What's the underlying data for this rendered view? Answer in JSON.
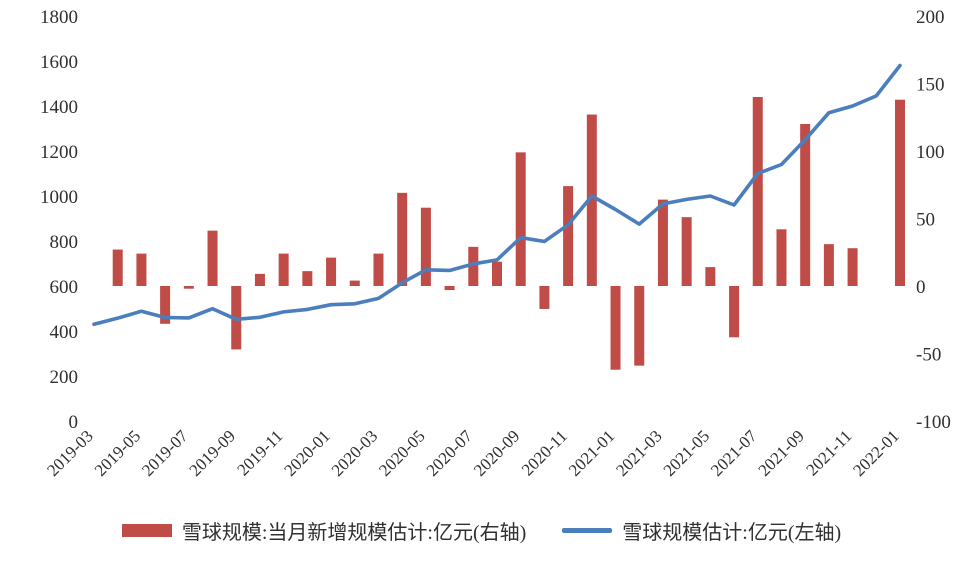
{
  "chart_data": {
    "type": "combo",
    "title": "",
    "x": [
      "2019-03",
      "2019-04",
      "2019-05",
      "2019-06",
      "2019-07",
      "2019-08",
      "2019-09",
      "2019-10",
      "2019-11",
      "2019-12",
      "2020-01",
      "2020-02",
      "2020-03",
      "2020-04",
      "2020-05",
      "2020-06",
      "2020-07",
      "2020-08",
      "2020-09",
      "2020-10",
      "2020-11",
      "2020-12",
      "2021-01",
      "2021-02",
      "2021-03",
      "2021-04",
      "2021-05",
      "2021-06",
      "2021-07",
      "2021-08",
      "2021-09",
      "2021-10",
      "2021-11",
      "2021-12",
      "2022-01"
    ],
    "x_tick_labels": [
      "2019-03",
      "2019-05",
      "2019-07",
      "2019-09",
      "2019-11",
      "2020-01",
      "2020-03",
      "2020-05",
      "2020-07",
      "2020-09",
      "2020-11",
      "2021-01",
      "2021-03",
      "2021-05",
      "2021-07",
      "2021-09",
      "2021-11",
      "2022-01"
    ],
    "x_tick_step": 2,
    "series": [
      {
        "name": "雪球规模:当月新增规模估计:亿元(右轴)",
        "type": "bar",
        "axis": "right",
        "color": "#BF4C47",
        "values": [
          null,
          27,
          24,
          -28,
          -2,
          41,
          -47,
          9,
          24,
          11,
          21,
          4,
          24,
          69,
          58,
          -3,
          29,
          18,
          99,
          -17,
          74,
          127,
          -62,
          -59,
          64,
          51,
          14,
          -38,
          140,
          42,
          120,
          31,
          28,
          null,
          138
        ]
      },
      {
        "name": "雪球规模估计:亿元(左轴)",
        "type": "line",
        "axis": "left",
        "color": "#4B7EBC",
        "values": [
          430,
          457,
          488,
          460,
          458,
          499,
          452,
          461,
          485,
          496,
          517,
          521,
          545,
          614,
          672,
          669,
          698,
          716,
          815,
          798,
          872,
          1000,
          940,
          875,
          965,
          985,
          1000,
          960,
          1100,
          1140,
          1250,
          1370,
          1400,
          1445,
          1580
        ]
      }
    ],
    "left_axis": {
      "min": 0,
      "max": 1800,
      "ticks": [
        0,
        200,
        400,
        600,
        800,
        1000,
        1200,
        1400,
        1600,
        1800
      ]
    },
    "right_axis": {
      "min": -100,
      "max": 200,
      "ticks": [
        -100,
        -50,
        0,
        50,
        100,
        150,
        200
      ]
    },
    "grid": "off",
    "legend_position": "bottom"
  }
}
